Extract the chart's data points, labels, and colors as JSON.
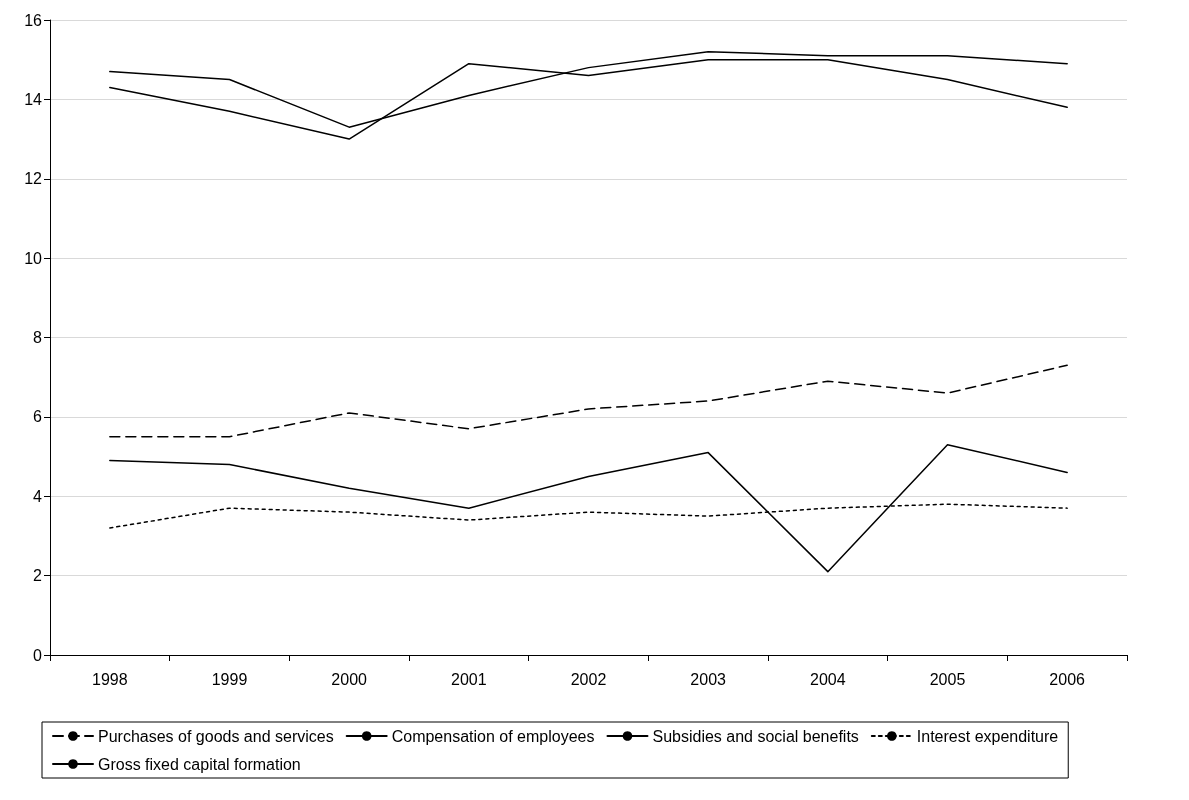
{
  "chart_data": {
    "type": "line",
    "categories": [
      "1998",
      "1999",
      "2000",
      "2001",
      "2002",
      "2003",
      "2004",
      "2005",
      "2006"
    ],
    "series": [
      {
        "name": "Purchases of goods and services",
        "color": "#000000",
        "line_style": "dashed",
        "values": [
          5.5,
          5.5,
          6.1,
          5.7,
          6.2,
          6.4,
          6.9,
          6.6,
          7.3
        ]
      },
      {
        "name": "Compensation of employees",
        "color": "#000000",
        "line_style": "solid",
        "values": [
          14.3,
          13.7,
          13.0,
          14.9,
          14.6,
          15.0,
          15.0,
          14.5,
          13.8
        ]
      },
      {
        "name": "Subsidies and social benefits",
        "color": "#000000",
        "line_style": "solid",
        "values": [
          14.7,
          14.5,
          13.3,
          14.1,
          14.8,
          15.2,
          15.1,
          15.1,
          14.9
        ]
      },
      {
        "name": "Interest expenditure",
        "color": "#000000",
        "line_style": "dotted",
        "values": [
          3.2,
          3.7,
          3.6,
          3.4,
          3.6,
          3.5,
          3.7,
          3.8,
          3.7
        ]
      },
      {
        "name": "Gross fixed capital formation",
        "color": "#000000",
        "line_style": "solid",
        "values": [
          4.9,
          4.8,
          4.2,
          3.7,
          4.5,
          5.1,
          2.1,
          5.3,
          4.6
        ]
      }
    ],
    "ylim": [
      0,
      16
    ],
    "yticks": [
      0,
      2,
      4,
      6,
      8,
      10,
      12,
      14,
      16
    ],
    "grid": "y",
    "legend": "bottom",
    "marker": "none"
  }
}
